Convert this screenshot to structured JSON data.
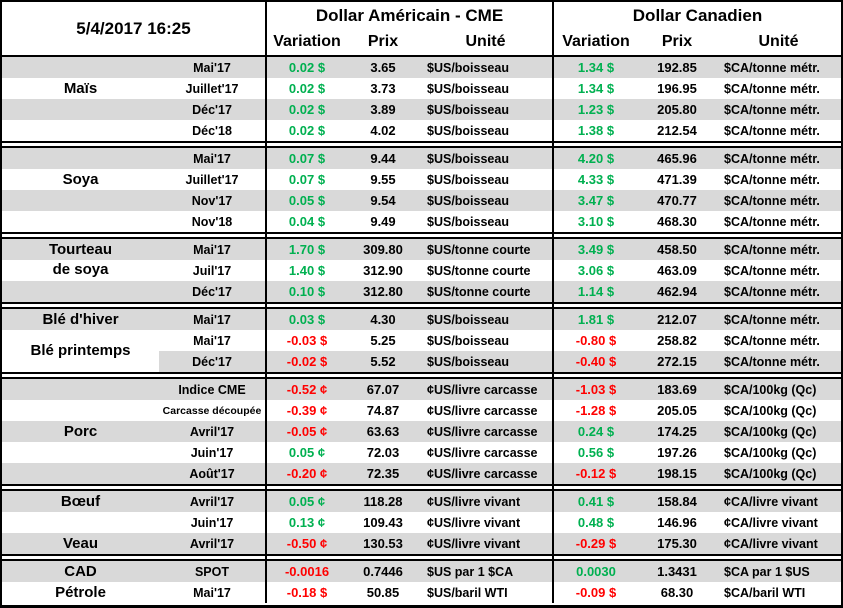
{
  "datetime": "5/4/2017 16:25",
  "header": {
    "us_group": "Dollar Américain - CME",
    "ca_group": "Dollar Canadien",
    "columns": {
      "variation": "Variation",
      "prix": "Prix",
      "unite": "Unité"
    }
  },
  "colors": {
    "positive": "#00B050",
    "negative": "#FF0000",
    "shade": "#D9D9D9",
    "border": "#000000"
  },
  "sections": [
    {
      "categories": [
        {
          "label": "Maïs",
          "row": 1,
          "span": 1
        }
      ],
      "rows": [
        {
          "month": "Mai'17",
          "us": {
            "var": "0.02 $",
            "dir": "pos",
            "prix": "3.65",
            "unit": "$US/boisseau"
          },
          "ca": {
            "var": "1.34 $",
            "dir": "pos",
            "prix": "192.85",
            "unit": "$CA/tonne métr."
          }
        },
        {
          "month": "Juillet'17",
          "us": {
            "var": "0.02 $",
            "dir": "pos",
            "prix": "3.73",
            "unit": "$US/boisseau"
          },
          "ca": {
            "var": "1.34 $",
            "dir": "pos",
            "prix": "196.95",
            "unit": "$CA/tonne métr."
          }
        },
        {
          "month": "Déc'17",
          "us": {
            "var": "0.02 $",
            "dir": "pos",
            "prix": "3.89",
            "unit": "$US/boisseau"
          },
          "ca": {
            "var": "1.23 $",
            "dir": "pos",
            "prix": "205.80",
            "unit": "$CA/tonne métr."
          }
        },
        {
          "month": "Déc'18",
          "us": {
            "var": "0.02 $",
            "dir": "pos",
            "prix": "4.02",
            "unit": "$US/boisseau"
          },
          "ca": {
            "var": "1.38 $",
            "dir": "pos",
            "prix": "212.54",
            "unit": "$CA/tonne métr."
          }
        }
      ]
    },
    {
      "categories": [
        {
          "label": "Soya",
          "row": 1,
          "span": 1
        }
      ],
      "rows": [
        {
          "month": "Mai'17",
          "us": {
            "var": "0.07 $",
            "dir": "pos",
            "prix": "9.44",
            "unit": "$US/boisseau"
          },
          "ca": {
            "var": "4.20 $",
            "dir": "pos",
            "prix": "465.96",
            "unit": "$CA/tonne métr."
          }
        },
        {
          "month": "Juillet'17",
          "us": {
            "var": "0.07 $",
            "dir": "pos",
            "prix": "9.55",
            "unit": "$US/boisseau"
          },
          "ca": {
            "var": "4.33 $",
            "dir": "pos",
            "prix": "471.39",
            "unit": "$CA/tonne métr."
          }
        },
        {
          "month": "Nov'17",
          "us": {
            "var": "0.05 $",
            "dir": "pos",
            "prix": "9.54",
            "unit": "$US/boisseau"
          },
          "ca": {
            "var": "3.47 $",
            "dir": "pos",
            "prix": "470.77",
            "unit": "$CA/tonne métr."
          }
        },
        {
          "month": "Nov'18",
          "us": {
            "var": "0.04 $",
            "dir": "pos",
            "prix": "9.49",
            "unit": "$US/boisseau"
          },
          "ca": {
            "var": "3.10 $",
            "dir": "pos",
            "prix": "468.30",
            "unit": "$CA/tonne métr."
          }
        }
      ]
    },
    {
      "categories": [
        {
          "label": "Tourteau\nde soya",
          "row": 0,
          "span": 2
        }
      ],
      "rows": [
        {
          "month": "Mai'17",
          "us": {
            "var": "1.70 $",
            "dir": "pos",
            "prix": "309.80",
            "unit": "$US/tonne courte"
          },
          "ca": {
            "var": "3.49 $",
            "dir": "pos",
            "prix": "458.50",
            "unit": "$CA/tonne métr."
          }
        },
        {
          "month": "Juil'17",
          "us": {
            "var": "1.40 $",
            "dir": "pos",
            "prix": "312.90",
            "unit": "$US/tonne courte"
          },
          "ca": {
            "var": "3.06 $",
            "dir": "pos",
            "prix": "463.09",
            "unit": "$CA/tonne métr."
          }
        },
        {
          "month": "Déc'17",
          "us": {
            "var": "0.10 $",
            "dir": "pos",
            "prix": "312.80",
            "unit": "$US/tonne courte"
          },
          "ca": {
            "var": "1.14 $",
            "dir": "pos",
            "prix": "462.94",
            "unit": "$CA/tonne métr."
          }
        }
      ]
    },
    {
      "categories": [
        {
          "label": "Blé d'hiver",
          "row": 0,
          "span": 1
        },
        {
          "label": "Blé printemps",
          "row": 1,
          "span": 2,
          "white_bg": true
        }
      ],
      "rows": [
        {
          "month": "Mai'17",
          "us": {
            "var": "0.03 $",
            "dir": "pos",
            "prix": "4.30",
            "unit": "$US/boisseau"
          },
          "ca": {
            "var": "1.81 $",
            "dir": "pos",
            "prix": "212.07",
            "unit": "$CA/tonne métr."
          }
        },
        {
          "month": "Mai'17",
          "us": {
            "var": "-0.03 $",
            "dir": "neg",
            "prix": "5.25",
            "unit": "$US/boisseau"
          },
          "ca": {
            "var": "-0.80 $",
            "dir": "neg",
            "prix": "258.82",
            "unit": "$CA/tonne métr."
          }
        },
        {
          "month": "Déc'17",
          "us": {
            "var": "-0.02 $",
            "dir": "neg",
            "prix": "5.52",
            "unit": "$US/boisseau"
          },
          "ca": {
            "var": "-0.40 $",
            "dir": "neg",
            "prix": "272.15",
            "unit": "$CA/tonne métr."
          }
        }
      ]
    },
    {
      "categories": [
        {
          "label": "Porc",
          "row": 2,
          "span": 1
        }
      ],
      "rows": [
        {
          "month": "Indice CME",
          "us": {
            "var": "-0.52 ¢",
            "dir": "neg",
            "prix": "67.07",
            "unit": "¢US/livre carcasse"
          },
          "ca": {
            "var": "-1.03 $",
            "dir": "neg",
            "prix": "183.69",
            "unit": "$CA/100kg (Qc)"
          }
        },
        {
          "month": "Carcasse découpée",
          "us": {
            "var": "-0.39 ¢",
            "dir": "neg",
            "prix": "74.87",
            "unit": "¢US/livre carcasse"
          },
          "ca": {
            "var": "-1.28 $",
            "dir": "neg",
            "prix": "205.05",
            "unit": "$CA/100kg (Qc)"
          }
        },
        {
          "month": "Avril'17",
          "us": {
            "var": "-0.05 ¢",
            "dir": "neg",
            "prix": "63.63",
            "unit": "¢US/livre carcasse"
          },
          "ca": {
            "var": "0.24 $",
            "dir": "pos",
            "prix": "174.25",
            "unit": "$CA/100kg (Qc)"
          }
        },
        {
          "month": "Juin'17",
          "us": {
            "var": "0.05 ¢",
            "dir": "pos",
            "prix": "72.03",
            "unit": "¢US/livre carcasse"
          },
          "ca": {
            "var": "0.56 $",
            "dir": "pos",
            "prix": "197.26",
            "unit": "$CA/100kg (Qc)"
          }
        },
        {
          "month": "Août'17",
          "us": {
            "var": "-0.20 ¢",
            "dir": "neg",
            "prix": "72.35",
            "unit": "¢US/livre carcasse"
          },
          "ca": {
            "var": "-0.12 $",
            "dir": "neg",
            "prix": "198.15",
            "unit": "$CA/100kg (Qc)"
          }
        }
      ]
    },
    {
      "categories": [
        {
          "label": "Bœuf",
          "row": 0,
          "span": 1
        },
        {
          "label": "Veau",
          "row": 2,
          "span": 1
        }
      ],
      "rows": [
        {
          "month": "Avril'17",
          "us": {
            "var": "0.05 ¢",
            "dir": "pos",
            "prix": "118.28",
            "unit": "¢US/livre vivant"
          },
          "ca": {
            "var": "0.41 $",
            "dir": "pos",
            "prix": "158.84",
            "unit": "¢CA/livre vivant"
          }
        },
        {
          "month": "Juin'17",
          "us": {
            "var": "0.13 ¢",
            "dir": "pos",
            "prix": "109.43",
            "unit": "¢US/livre vivant"
          },
          "ca": {
            "var": "0.48 $",
            "dir": "pos",
            "prix": "146.96",
            "unit": "¢CA/livre vivant"
          }
        },
        {
          "month": "Avril'17",
          "us": {
            "var": "-0.50 ¢",
            "dir": "neg",
            "prix": "130.53",
            "unit": "¢US/livre vivant"
          },
          "ca": {
            "var": "-0.29 $",
            "dir": "neg",
            "prix": "175.30",
            "unit": "¢CA/livre vivant"
          }
        }
      ]
    },
    {
      "categories": [
        {
          "label": "CAD",
          "row": 0,
          "span": 1
        },
        {
          "label": "Pétrole",
          "row": 1,
          "span": 1
        }
      ],
      "rows": [
        {
          "month": "SPOT",
          "us": {
            "var": "-0.0016",
            "dir": "neg",
            "prix": "0.7446",
            "unit": "$US par 1 $CA"
          },
          "ca": {
            "var": "0.0030",
            "dir": "pos",
            "prix": "1.3431",
            "unit": "$CA par 1 $US"
          }
        },
        {
          "month": "Mai'17",
          "us": {
            "var": "-0.18 $",
            "dir": "neg",
            "prix": "50.85",
            "unit": "$US/baril WTI"
          },
          "ca": {
            "var": "-0.09 $",
            "dir": "neg",
            "prix": "68.30",
            "unit": "$CA/baril WTI"
          }
        }
      ]
    }
  ]
}
